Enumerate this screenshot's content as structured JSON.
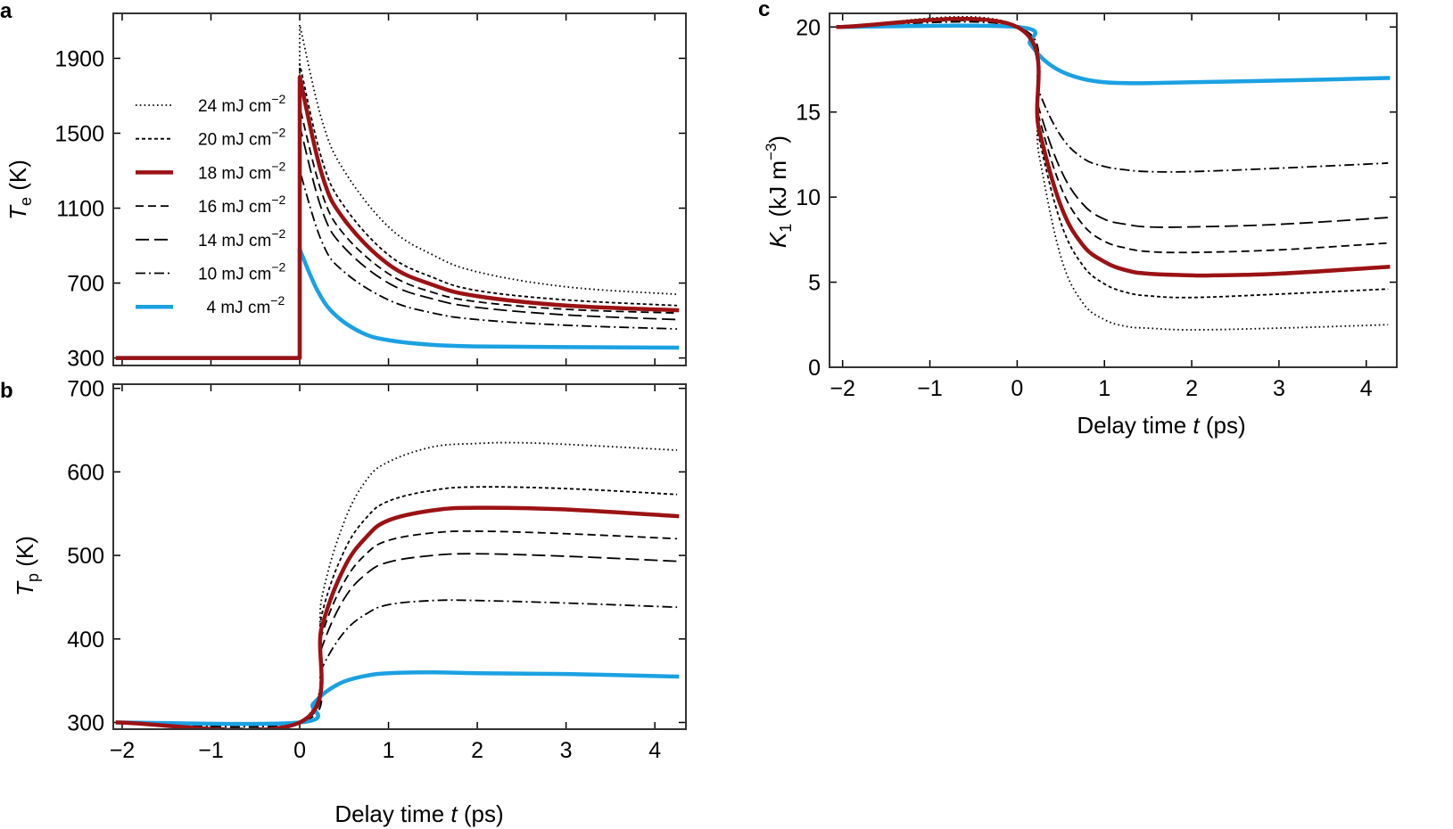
{
  "panels": {
    "a": {
      "letter": "a"
    },
    "b": {
      "letter": "b"
    },
    "c": {
      "letter": "c"
    }
  },
  "axis_text": {
    "xlabel_prefix": "Delay time ",
    "xlabel_var": "t",
    "xlabel_suffix": " (ps)",
    "te_var": "T",
    "te_sub": "e",
    "te_unit": " (K)",
    "tp_var": "T",
    "tp_sub": "p",
    "tp_unit": " (K)",
    "k1_var": "K",
    "k1_sub": "1",
    "k1_unit_pre": " (kJ m",
    "k1_unit_sup": "−3",
    "k1_unit_post": ")"
  },
  "legend": [
    {
      "value": "24",
      "unit": " mJ cm",
      "exp": "−2",
      "style": "dotted"
    },
    {
      "value": "20",
      "unit": " mJ cm",
      "exp": "−2",
      "style": "short-dash"
    },
    {
      "value": "18",
      "unit": " mJ cm",
      "exp": "−2",
      "style": "thick-red"
    },
    {
      "value": "16",
      "unit": " mJ cm",
      "exp": "−2",
      "style": "dash"
    },
    {
      "value": "14",
      "unit": " mJ cm",
      "exp": "−2",
      "style": "long-dash"
    },
    {
      "value": "10",
      "unit": " mJ cm",
      "exp": "−2",
      "style": "dash-dot"
    },
    {
      "value": "4",
      "unit": " mJ cm",
      "exp": "−2",
      "style": "thick-blue"
    }
  ],
  "colors": {
    "red": "#9b1214",
    "blue": "#1ba1e2",
    "black": "#000000"
  },
  "chart_data": [
    {
      "panel": "a",
      "type": "line",
      "ylabel": "Te (K)",
      "xlabel": "Delay time t (ps)",
      "xlim": [
        -2.1,
        4.35
      ],
      "ylim": [
        260,
        2140
      ],
      "xticks": [
        -2,
        -1,
        0,
        1,
        2,
        3,
        4
      ],
      "xtick_labels": [],
      "yticks": [
        300,
        700,
        1100,
        1500,
        1900
      ],
      "ytick_labels": [
        "300",
        "700",
        "1100",
        "1500",
        "1900"
      ],
      "baseline": 300,
      "series": [
        {
          "name": "24 mJ cm−2",
          "x": [
            -2.05,
            0,
            0,
            0.25,
            0.5,
            1,
            1.5,
            2,
            3,
            4.25
          ],
          "y": [
            300,
            300,
            2080,
            1570,
            1300,
            1000,
            850,
            760,
            680,
            640
          ]
        },
        {
          "name": "20 mJ cm−2",
          "x": [
            -2.05,
            0,
            0,
            0.25,
            0.5,
            1,
            1.5,
            2,
            3,
            4.25
          ],
          "y": [
            300,
            300,
            1870,
            1360,
            1110,
            850,
            730,
            660,
            610,
            580
          ]
        },
        {
          "name": "18 mJ cm−2",
          "x": [
            -2.05,
            0,
            0,
            0.25,
            0.5,
            1,
            1.5,
            2,
            3,
            4.25
          ],
          "y": [
            300,
            300,
            1800,
            1280,
            1040,
            800,
            690,
            630,
            580,
            555
          ]
        },
        {
          "name": "16 mJ cm−2",
          "x": [
            -2.05,
            0,
            0,
            0.25,
            0.5,
            1,
            1.5,
            2,
            3,
            4.25
          ],
          "y": [
            300,
            300,
            1640,
            1180,
            960,
            750,
            650,
            600,
            560,
            540
          ]
        },
        {
          "name": "14 mJ cm−2",
          "x": [
            -2.05,
            0,
            0,
            0.25,
            0.5,
            1,
            1.5,
            2,
            3,
            4.25
          ],
          "y": [
            300,
            300,
            1540,
            1090,
            890,
            700,
            615,
            570,
            530,
            505
          ]
        },
        {
          "name": "10 mJ cm−2",
          "x": [
            -2.05,
            0,
            0,
            0.25,
            0.5,
            1,
            1.5,
            2,
            3,
            4.25
          ],
          "y": [
            300,
            300,
            1300,
            920,
            760,
            610,
            540,
            505,
            475,
            455
          ]
        },
        {
          "name": "4 mJ cm−2",
          "x": [
            -2.05,
            0,
            0,
            0.2,
            0.4,
            0.7,
            1,
            1.5,
            2,
            3,
            4.25
          ],
          "y": [
            300,
            300,
            880,
            660,
            530,
            435,
            395,
            370,
            362,
            358,
            355
          ]
        }
      ]
    },
    {
      "panel": "b",
      "type": "line",
      "ylabel": "Tp (K)",
      "xlabel": "Delay time t (ps)",
      "xlim": [
        -2.1,
        4.35
      ],
      "ylim": [
        292,
        705
      ],
      "xticks": [
        -2,
        -1,
        0,
        1,
        2,
        3,
        4
      ],
      "xtick_labels": [
        "−2",
        "−1",
        "0",
        "1",
        "2",
        "3",
        "4"
      ],
      "yticks": [
        300,
        400,
        500,
        600,
        700
      ],
      "ytick_labels": [
        "300",
        "400",
        "500",
        "600",
        "700"
      ],
      "series": [
        {
          "name": "24 mJ cm−2",
          "x": [
            -2.05,
            0,
            0.25,
            0.5,
            0.75,
            1,
            1.5,
            2,
            2.4,
            3,
            4.25
          ],
          "y": [
            300,
            300,
            450,
            540,
            590,
            612,
            630,
            634,
            635,
            633,
            626
          ]
        },
        {
          "name": "20 mJ cm−2",
          "x": [
            -2.05,
            0,
            0.25,
            0.5,
            0.75,
            1,
            1.5,
            2,
            3,
            4.25
          ],
          "y": [
            300,
            300,
            430,
            505,
            545,
            565,
            578,
            582,
            580,
            573
          ]
        },
        {
          "name": "18 mJ cm−2",
          "x": [
            -2.05,
            0,
            0.25,
            0.5,
            0.75,
            1,
            1.5,
            2,
            3,
            4.25
          ],
          "y": [
            300,
            300,
            415,
            485,
            522,
            542,
            554,
            557,
            555,
            547
          ]
        },
        {
          "name": "16 mJ cm−2",
          "x": [
            -2.05,
            0,
            0.25,
            0.5,
            0.75,
            1,
            1.5,
            2,
            3,
            4.25
          ],
          "y": [
            300,
            300,
            405,
            468,
            502,
            518,
            527,
            529,
            526,
            520
          ]
        },
        {
          "name": "14 mJ cm−2",
          "x": [
            -2.05,
            0,
            0.25,
            0.5,
            0.75,
            1,
            1.5,
            2,
            3,
            4.25
          ],
          "y": [
            300,
            300,
            390,
            448,
            478,
            492,
            500,
            502,
            499,
            493
          ]
        },
        {
          "name": "10 mJ cm−2",
          "x": [
            -2.05,
            0,
            0.25,
            0.5,
            0.75,
            1,
            1.5,
            2,
            3,
            4.25
          ],
          "y": [
            300,
            300,
            365,
            408,
            430,
            441,
            446,
            446,
            443,
            438
          ]
        },
        {
          "name": "4 mJ cm−2",
          "x": [
            -2.05,
            0,
            0.15,
            0.3,
            0.5,
            0.75,
            1,
            1.5,
            2,
            3,
            4.25
          ],
          "y": [
            300,
            300,
            322,
            337,
            349,
            356,
            359,
            360,
            359,
            358,
            355
          ]
        }
      ]
    },
    {
      "panel": "c",
      "type": "line",
      "ylabel": "K1 (kJ m−3)",
      "xlabel": "Delay time t (ps)",
      "xlim": [
        -2.15,
        4.35
      ],
      "ylim": [
        0,
        20.8
      ],
      "xticks": [
        -2,
        -1,
        0,
        1,
        2,
        3,
        4
      ],
      "xtick_labels": [
        "−2",
        "−1",
        "0",
        "1",
        "2",
        "3",
        "4"
      ],
      "yticks": [
        0,
        5,
        10,
        15,
        20
      ],
      "ytick_labels": [
        "0",
        "5",
        "10",
        "15",
        "20"
      ],
      "series": [
        {
          "name": "24 mJ cm−2",
          "x": [
            -2.05,
            0,
            0.25,
            0.5,
            0.75,
            1,
            1.25,
            1.5,
            2,
            3,
            4.25
          ],
          "y": [
            20,
            20,
            12.5,
            6.5,
            3.8,
            2.8,
            2.4,
            2.3,
            2.2,
            2.3,
            2.5
          ]
        },
        {
          "name": "20 mJ cm−2",
          "x": [
            -2.05,
            0,
            0.25,
            0.5,
            0.75,
            1,
            1.25,
            1.5,
            2,
            3,
            4.25
          ],
          "y": [
            20,
            20,
            13.5,
            8.5,
            6.0,
            4.9,
            4.4,
            4.2,
            4.1,
            4.3,
            4.6
          ]
        },
        {
          "name": "18 mJ cm−2",
          "x": [
            -2.05,
            0,
            0.25,
            0.5,
            0.75,
            1,
            1.25,
            1.5,
            2,
            2.25,
            3,
            4.25
          ],
          "y": [
            20,
            20,
            14.0,
            9.5,
            7.2,
            6.2,
            5.7,
            5.5,
            5.4,
            5.4,
            5.5,
            5.9
          ]
        },
        {
          "name": "16 mJ cm−2",
          "x": [
            -2.05,
            0,
            0.25,
            0.5,
            0.75,
            1,
            1.25,
            1.5,
            2,
            3,
            4.25
          ],
          "y": [
            20,
            20,
            14.7,
            10.6,
            8.4,
            7.4,
            7.0,
            6.8,
            6.75,
            6.9,
            7.3
          ]
        },
        {
          "name": "14 mJ cm−2",
          "x": [
            -2.05,
            0,
            0.25,
            0.5,
            0.75,
            1,
            1.25,
            1.5,
            2,
            3,
            4.25
          ],
          "y": [
            20,
            20,
            15.2,
            11.6,
            9.6,
            8.7,
            8.4,
            8.25,
            8.25,
            8.4,
            8.8
          ]
        },
        {
          "name": "10 mJ cm−2",
          "x": [
            -2.05,
            0,
            0.25,
            0.5,
            0.75,
            1,
            1.25,
            1.5,
            2,
            3,
            4.25
          ],
          "y": [
            20,
            20,
            16.2,
            13.6,
            12.3,
            11.8,
            11.6,
            11.5,
            11.5,
            11.7,
            12.0
          ]
        },
        {
          "name": "4 mJ cm−2",
          "x": [
            -2.05,
            0,
            0.15,
            0.3,
            0.5,
            0.75,
            1,
            1.25,
            1.5,
            2,
            3,
            4.25
          ],
          "y": [
            20,
            20,
            19.0,
            18.1,
            17.4,
            16.95,
            16.75,
            16.7,
            16.7,
            16.75,
            16.85,
            17.0
          ]
        }
      ]
    }
  ]
}
